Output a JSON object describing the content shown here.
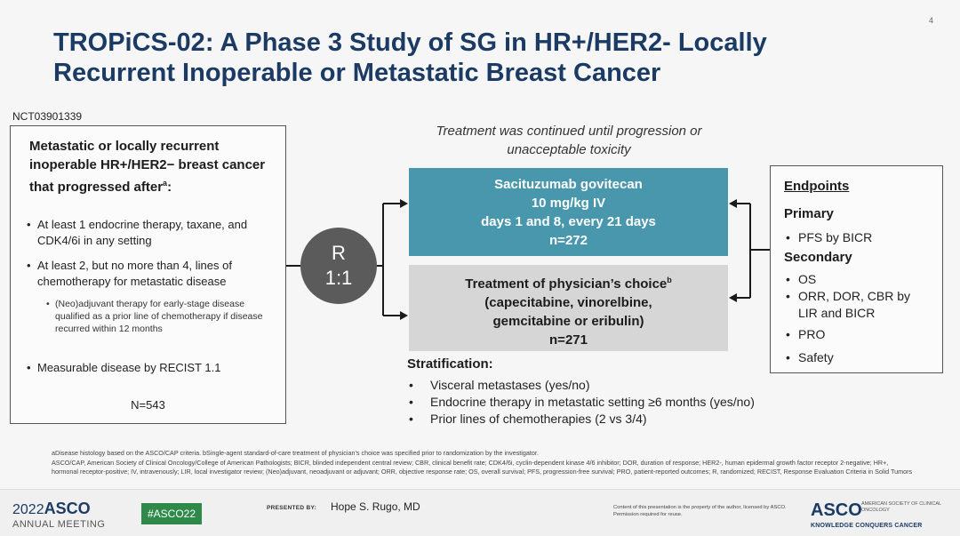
{
  "page_number": "4",
  "title": {
    "line1": "TROPiCS-02: A Phase 3 Study of SG in HR+/HER2- Locally",
    "line2": "Recurrent Inoperable or Metastatic Breast Cancer"
  },
  "trial_id": "NCT03901339",
  "eligibility": {
    "heading": "Metastatic or locally recurrent inoperable HR+/HER2− breast cancer that progressed after",
    "heading_sup": "a",
    "heading_end": ":",
    "bullets": [
      "At least 1 endocrine therapy, taxane, and CDK4/6i in any setting",
      "At least 2, but no more than 4, lines of chemotherapy for metastatic disease"
    ],
    "sub_bullet": "(Neo)adjuvant therapy for early-stage disease qualified as a prior line of chemotherapy if disease recurred within 12 months",
    "last_bullet": "Measurable disease by RECIST 1.1",
    "n": "N=543"
  },
  "randomization": {
    "letter": "R",
    "ratio": "1:1"
  },
  "treatment_note": "Treatment was continued until progression or unacceptable toxicity",
  "arm_sg": {
    "line1": "Sacituzumab govitecan",
    "line2": "10 mg/kg IV",
    "line3": "days 1 and 8, every 21 days",
    "n": "n=272"
  },
  "arm_tpc": {
    "line1": "Treatment of physician’s choice",
    "line1_sup": "b",
    "line2": "(capecitabine, vinorelbine,",
    "line3": "gemcitabine or eribulin)",
    "n": "n=271"
  },
  "stratification": {
    "title": "Stratification:",
    "items": [
      "Visceral metastases (yes/no)",
      "Endocrine therapy in metastatic setting ≥6 months (yes/no)",
      "Prior lines of chemotherapies (2 vs 3/4)"
    ]
  },
  "endpoints": {
    "title": "Endpoints",
    "primary_label": "Primary",
    "primary_items": [
      "PFS by BICR"
    ],
    "secondary_label": "Secondary",
    "secondary_items": [
      "OS",
      "ORR, DOR, CBR by LIR and BICR",
      "PRO",
      "Safety"
    ]
  },
  "footnote": {
    "line1": "aDisease histology based on the ASCO/CAP criteria. bSingle-agent standard-of-care treatment of physician’s choice was specified prior to randomization by the investigator.",
    "line2": "ASCO/CAP, American Society of Clinical Oncology/College of American Pathologists; BICR, blinded independent central review; CBR, clinical benefit rate; CDK4/6i, cyclin-dependent kinase 4/6 inhibitor; DOR, duration of response; HER2-, human epidermal growth factor receptor 2-negative; HR+, hormonal receptor-positive; IV, intravenously; LIR, local investigator review; (Neo)adjuvant, neoadjuvant or adjuvant; ORR, objective response rate; OS, overall survival; PFS, progression-free survival; PRO, patient-reported outcomes; R, randomized; RECIST, Response Evaluation Criteria in Solid Tumors"
  },
  "footer": {
    "year": "2022",
    "asco": "ASCO",
    "meeting": "ANNUAL MEETING",
    "hashtag": "#ASCO22",
    "presented_by": "PRESENTED BY:",
    "presenter": "Hope S. Rugo, MD",
    "copyright": "Content of this presentation is the property of the author, licensed by ASCO. Permission required for reuse.",
    "logo": "ASCO",
    "logo_sub": "AMERICAN SOCIETY OF CLINICAL ONCOLOGY",
    "tagline": "KNOWLEDGE CONQUERS CANCER"
  }
}
